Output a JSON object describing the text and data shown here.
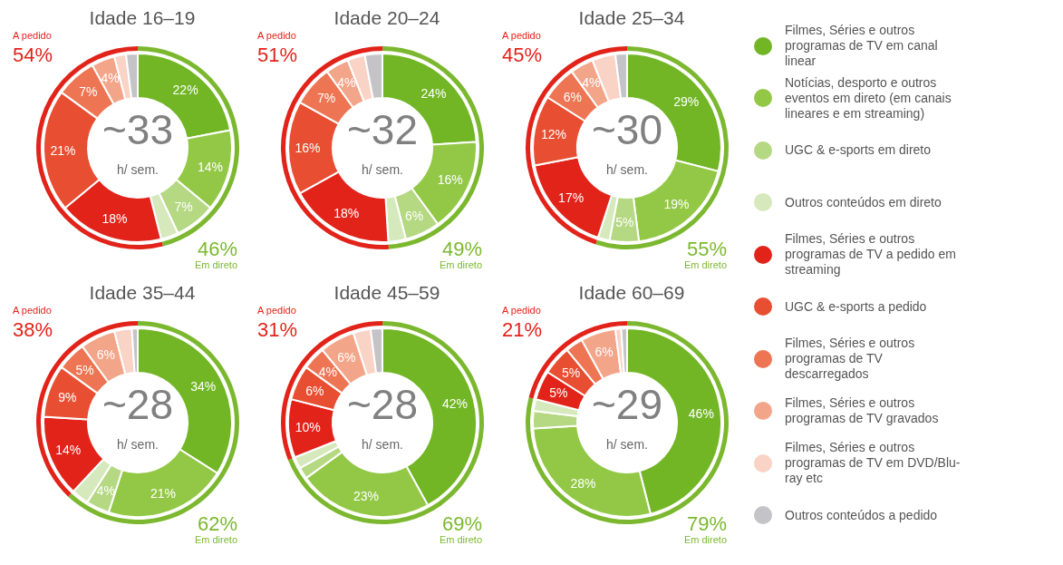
{
  "chart_data": [
    {
      "type": "donut",
      "title": "Idade 16–19",
      "legend": "right",
      "categories": [
        "Filmes, Séries e outros programas de TV em canal linear",
        "Notícias, desporto e outros eventos em direto (em canais lineares e em streaming)",
        "UGC & e-sports em direto",
        "Outros conteúdos em direto",
        "Filmes, Séries e outros programas de TV a pedido em streaming",
        "UGC & e-sports a pedido",
        "Filmes, Séries e outros programas de TV descarregados",
        "Filmes, Séries e outros programas de TV gravados",
        "Filmes, Séries e outros programas de TV em DVD/Blu-ray etc",
        "Outros conteúdos a pedido"
      ],
      "values": [
        22,
        14,
        7,
        3,
        18,
        21,
        7,
        4,
        2,
        2
      ],
      "colors": [
        "#72b626",
        "#93c847",
        "#b5d882",
        "#d5e9bc",
        "#e2231a",
        "#e84e31",
        "#ee7553",
        "#f3a58a",
        "#f9d3c6",
        "#c3c3c8"
      ],
      "value_labels": [
        "22%",
        "14%",
        "7%",
        null,
        "18%",
        "21%",
        "7%",
        "4%",
        null,
        null
      ],
      "annotations": [
        "~33",
        "h/ sem."
      ]
    },
    {
      "type": "donut",
      "categories": [
        "Em direto",
        "A pedido"
      ],
      "values": [
        46,
        54
      ],
      "colors": [
        "#7cb82f",
        "#e2231a"
      ],
      "value_labels": [
        "46%",
        "54%"
      ]
    },
    {
      "type": "donut",
      "title": "Idade 20–24",
      "values": [
        24,
        16,
        6,
        3,
        18,
        16,
        7,
        4,
        3,
        3
      ],
      "colors": [
        "#72b626",
        "#93c847",
        "#b5d882",
        "#d5e9bc",
        "#e2231a",
        "#e84e31",
        "#ee7553",
        "#f3a58a",
        "#f9d3c6",
        "#c3c3c8"
      ],
      "value_labels": [
        "24%",
        "16%",
        "6%",
        null,
        "18%",
        "16%",
        "7%",
        "4%",
        null,
        null
      ],
      "annotations": [
        "~32",
        "h/ sem."
      ]
    },
    {
      "type": "donut",
      "categories": [
        "Em direto",
        "A pedido"
      ],
      "values": [
        49,
        51
      ],
      "colors": [
        "#7cb82f",
        "#e2231a"
      ],
      "value_labels": [
        "49%",
        "51%"
      ]
    },
    {
      "type": "donut",
      "title": "Idade 25–34",
      "values": [
        29,
        19,
        5,
        2,
        17,
        12,
        6,
        4,
        4,
        2
      ],
      "colors": [
        "#72b626",
        "#93c847",
        "#b5d882",
        "#d5e9bc",
        "#e2231a",
        "#e84e31",
        "#ee7553",
        "#f3a58a",
        "#f9d3c6",
        "#c3c3c8"
      ],
      "value_labels": [
        "29%",
        "19%",
        "5%",
        null,
        "17%",
        "12%",
        "6%",
        "4%",
        null,
        null
      ],
      "annotations": [
        "~30",
        "h/ sem."
      ]
    },
    {
      "type": "donut",
      "categories": [
        "Em direto",
        "A pedido"
      ],
      "values": [
        55,
        45
      ],
      "colors": [
        "#7cb82f",
        "#e2231a"
      ],
      "value_labels": [
        "55%",
        "45%"
      ]
    },
    {
      "type": "donut",
      "title": "Idade 35–44",
      "values": [
        34,
        21,
        4,
        3,
        14,
        9,
        5,
        6,
        3,
        1
      ],
      "colors": [
        "#72b626",
        "#93c847",
        "#b5d882",
        "#d5e9bc",
        "#e2231a",
        "#e84e31",
        "#ee7553",
        "#f3a58a",
        "#f9d3c6",
        "#c3c3c8"
      ],
      "value_labels": [
        "34%",
        "21%",
        "4%",
        null,
        "14%",
        "9%",
        "5%",
        "6%",
        null,
        null
      ],
      "annotations": [
        "~28",
        "h/ sem."
      ]
    },
    {
      "type": "donut",
      "categories": [
        "Em direto",
        "A pedido"
      ],
      "values": [
        62,
        38
      ],
      "colors": [
        "#7cb82f",
        "#e2231a"
      ],
      "value_labels": [
        "62%",
        "38%"
      ]
    },
    {
      "type": "donut",
      "title": "Idade 45–59",
      "values": [
        42,
        23,
        2,
        2,
        10,
        6,
        4,
        6,
        3,
        2
      ],
      "colors": [
        "#72b626",
        "#93c847",
        "#b5d882",
        "#d5e9bc",
        "#e2231a",
        "#e84e31",
        "#ee7553",
        "#f3a58a",
        "#f9d3c6",
        "#c3c3c8"
      ],
      "value_labels": [
        "42%",
        "23%",
        null,
        null,
        "10%",
        "6%",
        "4%",
        "6%",
        null,
        null
      ],
      "annotations": [
        "~28",
        "h/ sem."
      ]
    },
    {
      "type": "donut",
      "categories": [
        "Em direto",
        "A pedido"
      ],
      "values": [
        69,
        31
      ],
      "colors": [
        "#7cb82f",
        "#e2231a"
      ],
      "value_labels": [
        "69%",
        "31%"
      ]
    },
    {
      "type": "donut",
      "title": "Idade 60–69",
      "values": [
        46,
        28,
        3,
        2,
        5,
        5,
        3,
        6,
        1,
        1
      ],
      "colors": [
        "#72b626",
        "#93c847",
        "#b5d882",
        "#d5e9bc",
        "#e2231a",
        "#e84e31",
        "#ee7553",
        "#f3a58a",
        "#f9d3c6",
        "#c3c3c8"
      ],
      "value_labels": [
        "46%",
        "28%",
        null,
        null,
        "5%",
        "5%",
        null,
        "6%",
        null,
        null
      ],
      "annotations": [
        "~29",
        "h/ sem."
      ]
    },
    {
      "type": "donut",
      "categories": [
        "Em direto",
        "A pedido"
      ],
      "values": [
        79,
        21
      ],
      "colors": [
        "#7cb82f",
        "#e2231a"
      ],
      "value_labels": [
        "79%",
        "21%"
      ]
    }
  ]
}
